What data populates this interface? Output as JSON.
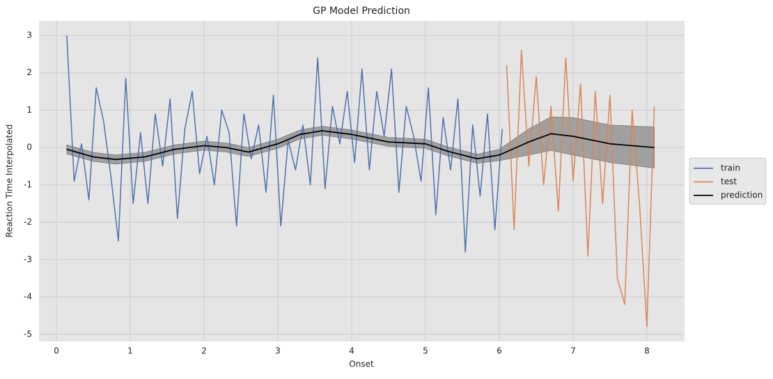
{
  "chart_data": {
    "type": "line",
    "title": "GP Model Prediction",
    "xlabel": "Onset",
    "ylabel": "Reaction Time Interpolated",
    "xlim": [
      -0.236,
      8.51
    ],
    "ylim": [
      -5.19,
      3.39
    ],
    "xticks": [
      0,
      1,
      2,
      3,
      4,
      5,
      6,
      7,
      8
    ],
    "yticks": [
      -5,
      -4,
      -3,
      -2,
      -1,
      0,
      1,
      2,
      3
    ],
    "grid": true,
    "legend": "right",
    "series": [
      {
        "name": "train",
        "color": "#4c72b0",
        "x": [
          0.14,
          0.24,
          0.34,
          0.44,
          0.54,
          0.64,
          0.74,
          0.84,
          0.94,
          1.04,
          1.14,
          1.24,
          1.34,
          1.44,
          1.54,
          1.64,
          1.74,
          1.84,
          1.94,
          2.04,
          2.14,
          2.24,
          2.34,
          2.44,
          2.54,
          2.64,
          2.74,
          2.84,
          2.94,
          3.04,
          3.14,
          3.24,
          3.34,
          3.44,
          3.54,
          3.64,
          3.74,
          3.84,
          3.94,
          4.04,
          4.14,
          4.24,
          4.34,
          4.44,
          4.54,
          4.64,
          4.74,
          4.84,
          4.94,
          5.04,
          5.14,
          5.24,
          5.34,
          5.44,
          5.54,
          5.64,
          5.74,
          5.84,
          5.94,
          6.04
        ],
        "values": [
          3.0,
          -0.9,
          0.1,
          -1.4,
          1.6,
          0.7,
          -0.8,
          -2.5,
          1.85,
          -1.5,
          0.4,
          -1.5,
          0.9,
          -0.5,
          1.3,
          -1.9,
          0.5,
          1.5,
          -0.7,
          0.3,
          -1.0,
          1.0,
          0.4,
          -2.1,
          0.9,
          -0.3,
          0.6,
          -1.2,
          1.4,
          -2.1,
          0.2,
          -0.6,
          0.6,
          -1.0,
          2.4,
          -1.1,
          1.1,
          0.1,
          1.5,
          -0.4,
          2.1,
          -0.6,
          1.5,
          0.3,
          2.1,
          -1.2,
          1.1,
          0.3,
          -0.9,
          1.6,
          -1.8,
          0.8,
          -0.6,
          1.3,
          -2.8,
          0.6,
          -1.3,
          0.9,
          -2.2,
          0.5
        ]
      },
      {
        "name": "test",
        "color": "#dd8452",
        "x": [
          6.1,
          6.2,
          6.3,
          6.4,
          6.5,
          6.6,
          6.7,
          6.8,
          6.9,
          7.0,
          7.1,
          7.2,
          7.3,
          7.4,
          7.5,
          7.6,
          7.7,
          7.8,
          7.9,
          8.0,
          8.1
        ],
        "values": [
          2.2,
          -2.2,
          2.6,
          -0.5,
          1.9,
          -1.0,
          1.1,
          -1.7,
          2.4,
          -0.9,
          1.7,
          -2.9,
          1.5,
          -1.5,
          1.4,
          -3.5,
          -4.2,
          1.0,
          -1.5,
          -4.8,
          1.1
        ]
      },
      {
        "name": "prediction",
        "color": "#000000",
        "x": [
          0.14,
          0.5,
          0.8,
          1.2,
          1.6,
          2.0,
          2.3,
          2.6,
          3.0,
          3.3,
          3.6,
          4.0,
          4.5,
          5.0,
          5.3,
          5.7,
          6.0,
          6.4,
          6.7,
          7.0,
          7.5,
          8.1
        ],
        "values": [
          -0.05,
          -0.25,
          -0.32,
          -0.25,
          -0.05,
          0.05,
          0.0,
          -0.12,
          0.1,
          0.35,
          0.45,
          0.35,
          0.15,
          0.1,
          -0.1,
          -0.3,
          -0.2,
          0.15,
          0.37,
          0.3,
          0.1,
          0.0
        ]
      }
    ],
    "band": {
      "color": "#a0a0a0",
      "lower": [
        -0.17,
        -0.37,
        -0.44,
        -0.37,
        -0.17,
        -0.07,
        -0.12,
        -0.24,
        -0.02,
        0.23,
        0.33,
        0.23,
        0.03,
        -0.02,
        -0.22,
        -0.42,
        -0.35,
        -0.2,
        -0.08,
        -0.2,
        -0.4,
        -0.55
      ],
      "upper": [
        0.07,
        -0.13,
        -0.2,
        -0.13,
        0.07,
        0.17,
        0.12,
        0.0,
        0.22,
        0.47,
        0.57,
        0.47,
        0.27,
        0.22,
        0.02,
        -0.18,
        -0.05,
        0.5,
        0.82,
        0.8,
        0.6,
        0.55
      ]
    }
  }
}
